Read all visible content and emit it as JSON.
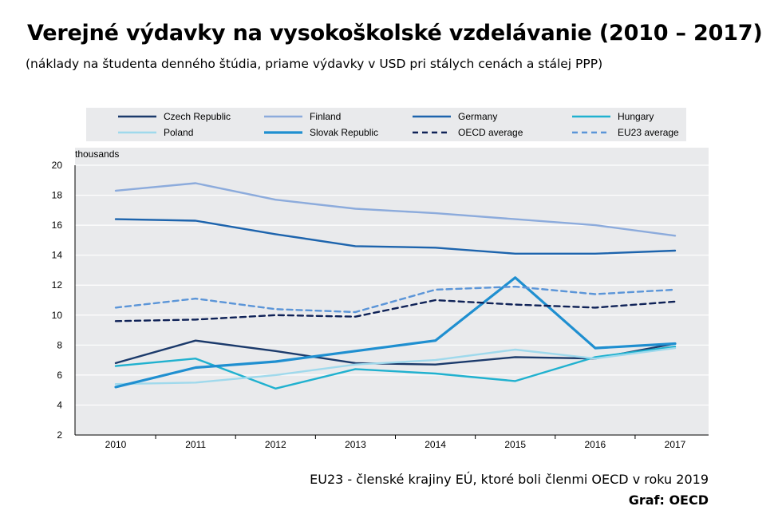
{
  "title": "Verejné výdavky na vysokoškolské vzdelávanie (2010 – 2017)",
  "subtitle": "(náklady na študenta denného štúdia, priame výdavky v USD pri stálych cenách a stálej PPP)",
  "footnote": "EU23 - členské krajiny EÚ, ktoré boli členmi OECD v roku 2019",
  "source": "Graf: OECD",
  "chart_data": {
    "type": "line",
    "x": [
      2010,
      2011,
      2012,
      2013,
      2014,
      2015,
      2016,
      2017
    ],
    "ylabel": "thousands",
    "ylim": [
      2,
      20
    ],
    "yticks": [
      2,
      4,
      6,
      8,
      10,
      12,
      14,
      16,
      18,
      20
    ],
    "grid": "horizontal",
    "legend_position": "top",
    "series": [
      {
        "name": "Czech Republic",
        "color": "#1b3a6b",
        "dash": false,
        "values": [
          6.8,
          8.3,
          7.6,
          6.8,
          6.7,
          7.2,
          7.1,
          8.1
        ]
      },
      {
        "name": "Finland",
        "color": "#8cabdc",
        "dash": false,
        "values": [
          18.3,
          18.8,
          17.7,
          17.1,
          16.8,
          16.4,
          16.0,
          15.3
        ]
      },
      {
        "name": "Germany",
        "color": "#1d64ad",
        "dash": false,
        "values": [
          16.4,
          16.3,
          15.4,
          14.6,
          14.5,
          14.1,
          14.1,
          14.3
        ]
      },
      {
        "name": "Hungary",
        "color": "#20b1cf",
        "dash": false,
        "values": [
          6.6,
          7.1,
          5.1,
          6.4,
          6.1,
          5.6,
          7.2,
          7.9
        ]
      },
      {
        "name": "Poland",
        "color": "#9fd9ec",
        "dash": false,
        "values": [
          5.4,
          5.5,
          6.0,
          6.7,
          7.0,
          7.7,
          7.1,
          7.8
        ]
      },
      {
        "name": "Slovak Republic",
        "color": "#1f8fd0",
        "dash": false,
        "values": [
          5.2,
          6.5,
          6.9,
          7.6,
          8.3,
          12.5,
          7.8,
          8.1
        ]
      },
      {
        "name": "OECD average",
        "color": "#0f2257",
        "dash": true,
        "values": [
          9.6,
          9.7,
          10.0,
          9.9,
          11.0,
          10.7,
          10.5,
          10.9
        ]
      },
      {
        "name": "EU23 average",
        "color": "#5b95d8",
        "dash": true,
        "values": [
          10.5,
          11.1,
          10.4,
          10.2,
          11.7,
          11.9,
          11.4,
          11.7
        ]
      }
    ]
  }
}
